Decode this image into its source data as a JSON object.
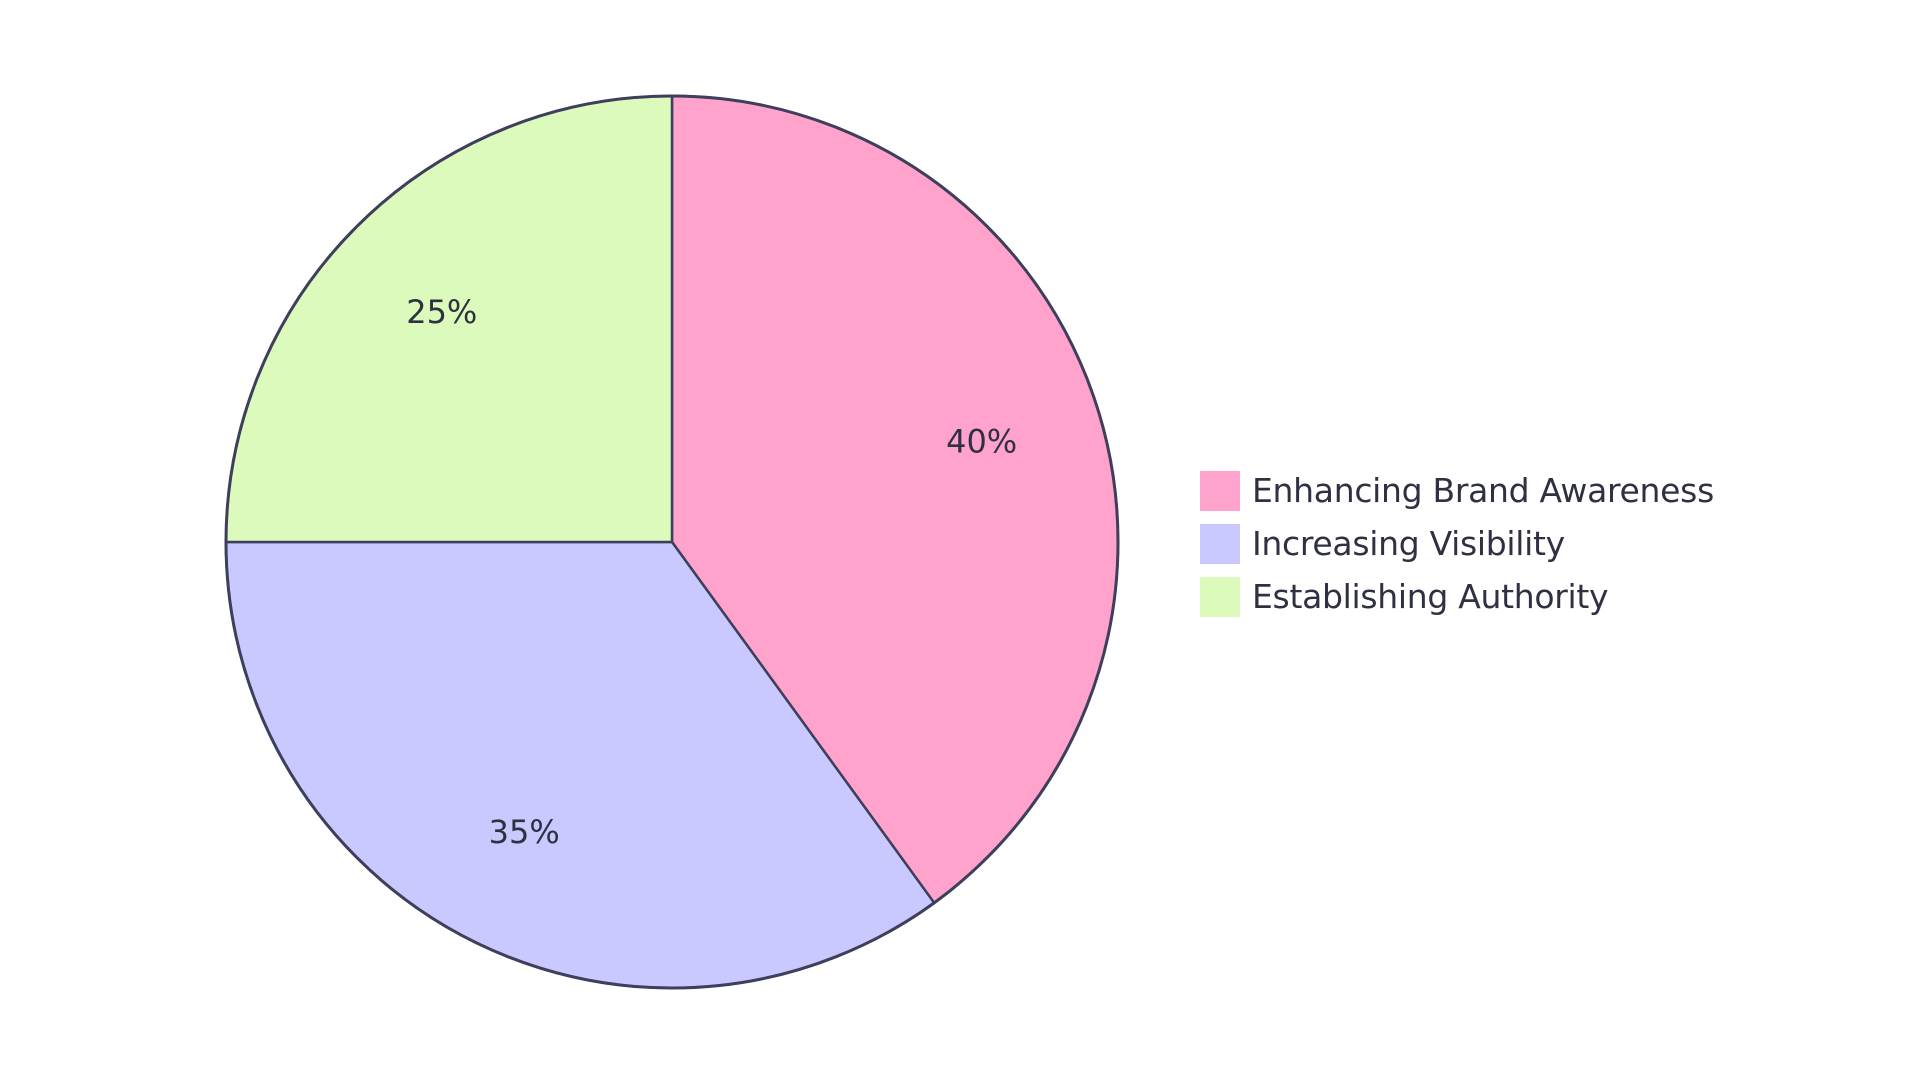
{
  "chart_data": {
    "type": "pie",
    "title": "",
    "legend_position": "right",
    "slices": [
      {
        "name": "Enhancing Brand Awareness",
        "value": 40,
        "label": "40%",
        "color": "#ffa3cc"
      },
      {
        "name": "Increasing Visibility",
        "value": 35,
        "label": "35%",
        "color": "#c9c9ff"
      },
      {
        "name": "Establishing Authority",
        "value": 25,
        "label": "25%",
        "color": "#dbfabb"
      }
    ]
  }
}
